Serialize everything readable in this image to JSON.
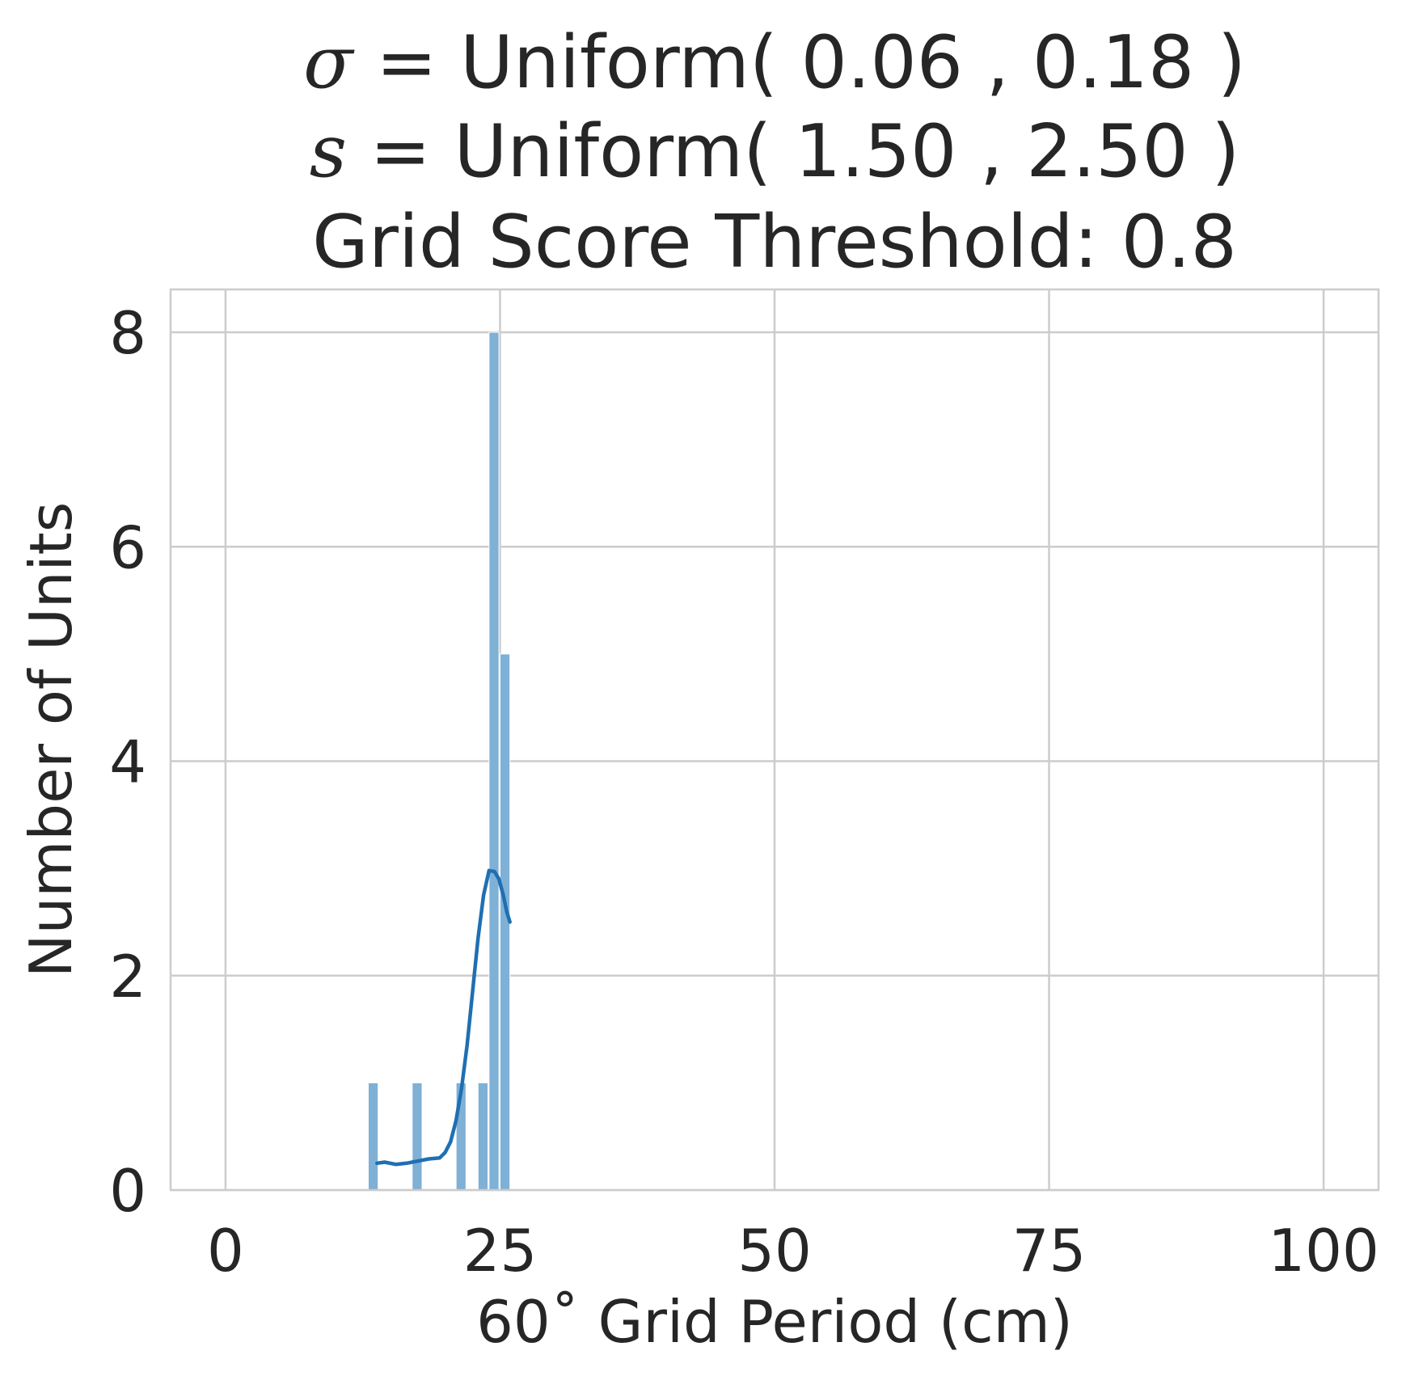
{
  "chart_data": {
    "type": "bar",
    "title_lines": [
      {
        "symbol": "σ",
        "text": " = Uniform( 0.06 , 0.18 )"
      },
      {
        "symbol": "s",
        "text": " = Uniform( 1.50 , 2.50 )"
      },
      {
        "symbol": "",
        "text": "Grid Score Threshold: 0.8"
      }
    ],
    "xlabel": "60˚ Grid Period (cm)",
    "ylabel": "Number of Units",
    "xlim": [
      -5,
      105
    ],
    "ylim": [
      0,
      8.4
    ],
    "xticks": [
      0,
      25,
      50,
      75,
      100
    ],
    "yticks": [
      0,
      2,
      4,
      6,
      8
    ],
    "grid": true,
    "bar_color": "#7fb0d6",
    "kde_color": "#1f6fb2",
    "grid_color": "#cccccc",
    "bins": [
      {
        "x0": 13.0,
        "x1": 13.9,
        "count": 1
      },
      {
        "x0": 17.0,
        "x1": 17.9,
        "count": 1
      },
      {
        "x0": 21.0,
        "x1": 21.9,
        "count": 1
      },
      {
        "x0": 23.0,
        "x1": 23.9,
        "count": 1
      },
      {
        "x0": 24.0,
        "x1": 24.9,
        "count": 8
      },
      {
        "x0": 25.0,
        "x1": 25.9,
        "count": 5
      }
    ],
    "kde": {
      "x": [
        13.8,
        14.5,
        15.5,
        16.5,
        17.5,
        18.5,
        19.5,
        20.0,
        20.5,
        21.0,
        21.5,
        22.0,
        22.5,
        23.0,
        23.5,
        24.0,
        24.5,
        24.9,
        25.3,
        25.6,
        25.9
      ],
      "y": [
        0.25,
        0.26,
        0.24,
        0.25,
        0.27,
        0.29,
        0.3,
        0.35,
        0.45,
        0.65,
        0.95,
        1.35,
        1.85,
        2.35,
        2.75,
        2.98,
        2.97,
        2.9,
        2.75,
        2.6,
        2.5
      ]
    }
  }
}
